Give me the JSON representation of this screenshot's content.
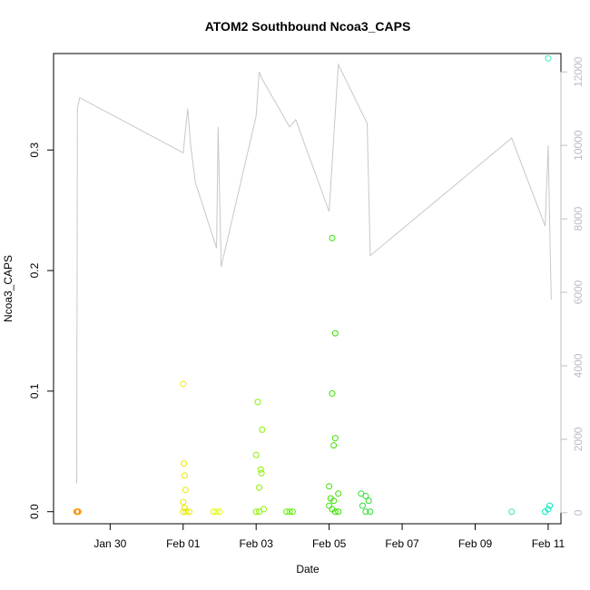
{
  "chart_data": {
    "type": "scatter",
    "title": "ATOM2 Southbound Ncoa3_CAPS",
    "xlabel": "Date",
    "ylabel": "Ncoa3_CAPS",
    "x_unit": "days",
    "xlim": [
      "Jan 28",
      "Feb 11"
    ],
    "ylim": [
      -0.01,
      0.38
    ],
    "y2lim": [
      -300,
      12500
    ],
    "x_ticks": [
      {
        "value": "Jan 30",
        "label": "Jan 30"
      },
      {
        "value": "Feb 01",
        "label": "Feb 01"
      },
      {
        "value": "Feb 03",
        "label": "Feb 03"
      },
      {
        "value": "Feb 05",
        "label": "Feb 05"
      },
      {
        "value": "Feb 07",
        "label": "Feb 07"
      },
      {
        "value": "Feb 09",
        "label": "Feb 09"
      },
      {
        "value": "Feb 11",
        "label": "Feb 11"
      }
    ],
    "y_ticks": [
      {
        "value": 0.0,
        "label": "0.0"
      },
      {
        "value": 0.1,
        "label": "0.1"
      },
      {
        "value": 0.2,
        "label": "0.2"
      },
      {
        "value": 0.3,
        "label": "0.3"
      }
    ],
    "y2_ticks": [
      {
        "value": 0,
        "label": "0"
      },
      {
        "value": 2000,
        "label": "2000"
      },
      {
        "value": 4000,
        "label": "4000"
      },
      {
        "value": 6000,
        "label": "6000"
      },
      {
        "value": 8000,
        "label": "8000"
      },
      {
        "value": 10000,
        "label": "10000"
      },
      {
        "value": 12000,
        "label": "12000"
      }
    ],
    "grid": false,
    "points": [
      {
        "date": "Jan 29 02:00",
        "y": 0.0,
        "color": "#ff8c00"
      },
      {
        "date": "Jan 29 02:30",
        "y": 0.0,
        "color": "#ff8c00"
      },
      {
        "date": "Jan 29 03:00",
        "y": 0.0,
        "color": "#ff8c00"
      },
      {
        "date": "Feb 01 00:00",
        "y": 0.106,
        "color": "#e8e800"
      },
      {
        "date": "Feb 01 00:30",
        "y": 0.04,
        "color": "#e8e800"
      },
      {
        "date": "Feb 01 01:00",
        "y": 0.03,
        "color": "#e8e800"
      },
      {
        "date": "Feb 01 01:30",
        "y": 0.018,
        "color": "#e8e800"
      },
      {
        "date": "Feb 01 00:00",
        "y": 0.008,
        "color": "#e8e800"
      },
      {
        "date": "Feb 01 01:00",
        "y": 0.003,
        "color": "#e8e800"
      },
      {
        "date": "Feb 01 00:00",
        "y": 0.0,
        "color": "#e8e800"
      },
      {
        "date": "Feb 01 02:00",
        "y": 0.0,
        "color": "#e8e800"
      },
      {
        "date": "Feb 01 04:00",
        "y": 0.0,
        "color": "#e8e800"
      },
      {
        "date": "Feb 01 20:00",
        "y": 0.0,
        "color": "#e0ff00"
      },
      {
        "date": "Feb 01 22:00",
        "y": 0.0,
        "color": "#e0ff00"
      },
      {
        "date": "Feb 02 00:00",
        "y": 0.0,
        "color": "#e0ff00"
      },
      {
        "date": "Feb 03 00:00",
        "y": 0.047,
        "color": "#8cf000"
      },
      {
        "date": "Feb 03 01:00",
        "y": 0.091,
        "color": "#8cf000"
      },
      {
        "date": "Feb 03 02:00",
        "y": 0.02,
        "color": "#8cf000"
      },
      {
        "date": "Feb 03 04:00",
        "y": 0.068,
        "color": "#8cf000"
      },
      {
        "date": "Feb 03 03:00",
        "y": 0.035,
        "color": "#8cf000"
      },
      {
        "date": "Feb 03 03:30",
        "y": 0.032,
        "color": "#8cf000"
      },
      {
        "date": "Feb 03 05:00",
        "y": 0.002,
        "color": "#8cf000"
      },
      {
        "date": "Feb 03 00:00",
        "y": 0.0,
        "color": "#8cf000"
      },
      {
        "date": "Feb 03 02:00",
        "y": 0.0,
        "color": "#8cf000"
      },
      {
        "date": "Feb 03 20:00",
        "y": 0.0,
        "color": "#5cf000"
      },
      {
        "date": "Feb 03 22:00",
        "y": 0.0,
        "color": "#5cf000"
      },
      {
        "date": "Feb 04 00:00",
        "y": 0.0,
        "color": "#5cf000"
      },
      {
        "date": "Feb 05 02:00",
        "y": 0.227,
        "color": "#3ce000"
      },
      {
        "date": "Feb 05 04:00",
        "y": 0.148,
        "color": "#3ce000"
      },
      {
        "date": "Feb 05 02:00",
        "y": 0.098,
        "color": "#3ce000"
      },
      {
        "date": "Feb 05 04:00",
        "y": 0.061,
        "color": "#3ce000"
      },
      {
        "date": "Feb 05 03:00",
        "y": 0.055,
        "color": "#3ce000"
      },
      {
        "date": "Feb 05 00:00",
        "y": 0.021,
        "color": "#3ce000"
      },
      {
        "date": "Feb 05 06:00",
        "y": 0.015,
        "color": "#3ce000"
      },
      {
        "date": "Feb 05 01:00",
        "y": 0.011,
        "color": "#3ce000"
      },
      {
        "date": "Feb 05 03:00",
        "y": 0.009,
        "color": "#3ce000"
      },
      {
        "date": "Feb 05 00:00",
        "y": 0.005,
        "color": "#3ce000"
      },
      {
        "date": "Feb 05 02:00",
        "y": 0.002,
        "color": "#3ce000"
      },
      {
        "date": "Feb 05 04:00",
        "y": 0.0,
        "color": "#3ce000"
      },
      {
        "date": "Feb 05 06:00",
        "y": 0.0,
        "color": "#3ce000"
      },
      {
        "date": "Feb 05 21:00",
        "y": 0.015,
        "color": "#2ae030"
      },
      {
        "date": "Feb 06 00:00",
        "y": 0.013,
        "color": "#2ae030"
      },
      {
        "date": "Feb 06 02:00",
        "y": 0.009,
        "color": "#2ae030"
      },
      {
        "date": "Feb 05 22:00",
        "y": 0.005,
        "color": "#2ae030"
      },
      {
        "date": "Feb 06 00:00",
        "y": 0.0,
        "color": "#2ae030"
      },
      {
        "date": "Feb 06 03:00",
        "y": 0.0,
        "color": "#2ae030"
      },
      {
        "date": "Feb 10 00:00",
        "y": 0.0,
        "color": "#3ce8a0"
      },
      {
        "date": "Feb 10 22:00",
        "y": 0.0,
        "color": "#00e8c0"
      },
      {
        "date": "Feb 11 00:00",
        "y": 0.002,
        "color": "#00e8c0"
      },
      {
        "date": "Feb 11 01:00",
        "y": 0.005,
        "color": "#00e8c0"
      },
      {
        "date": "Feb 11 00:00",
        "y": 0.376,
        "color": "#30f0c0"
      }
    ],
    "secondary_line": {
      "color": "#c8c8c8",
      "points": [
        {
          "date": "Jan 29 02:00",
          "y2": 800
        },
        {
          "date": "Jan 29 02:30",
          "y2": 11000
        },
        {
          "date": "Jan 29 04:00",
          "y2": 11300
        },
        {
          "date": "Feb 01 00:00",
          "y2": 9800
        },
        {
          "date": "Feb 01 03:00",
          "y2": 11000
        },
        {
          "date": "Feb 01 05:00",
          "y2": 10000
        },
        {
          "date": "Feb 01 08:00",
          "y2": 9000
        },
        {
          "date": "Feb 01 22:00",
          "y2": 7200
        },
        {
          "date": "Feb 01 23:00",
          "y2": 10500
        },
        {
          "date": "Feb 02 01:00",
          "y2": 6700
        },
        {
          "date": "Feb 03 00:00",
          "y2": 10800
        },
        {
          "date": "Feb 03 02:00",
          "y2": 12000
        },
        {
          "date": "Feb 03 04:00",
          "y2": 11800
        },
        {
          "date": "Feb 03 22:00",
          "y2": 10500
        },
        {
          "date": "Feb 04 02:00",
          "y2": 10700
        },
        {
          "date": "Feb 05 00:00",
          "y2": 8200
        },
        {
          "date": "Feb 05 06:00",
          "y2": 12200
        },
        {
          "date": "Feb 06 01:00",
          "y2": 10600
        },
        {
          "date": "Feb 06 03:00",
          "y2": 7000
        },
        {
          "date": "Feb 10 00:00",
          "y2": 10200
        },
        {
          "date": "Feb 10 22:00",
          "y2": 7800
        },
        {
          "date": "Feb 11 00:00",
          "y2": 10000
        },
        {
          "date": "Feb 11 02:00",
          "y2": 5800
        }
      ]
    }
  }
}
